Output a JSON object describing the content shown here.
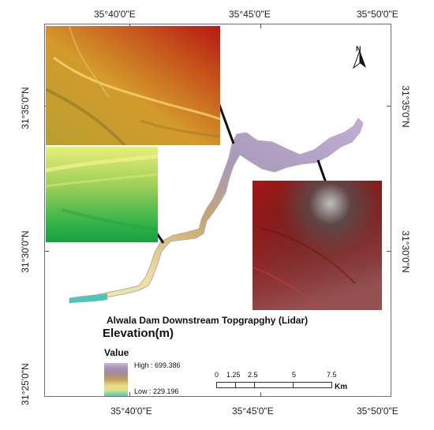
{
  "coordinates": {
    "top": [
      "35°40'0\"E",
      "35°45'0\"E",
      "35°50'0\"E"
    ],
    "bottom": [
      "35°40'0\"E",
      "35°45'0\"E",
      "35°50'0\"E"
    ],
    "left": [
      "31°35'0\"N",
      "31°30'0\"N",
      "31°25'0\"N"
    ],
    "right": [
      "31°35'0\"N",
      "31°30'0\"N"
    ]
  },
  "map_title": "Alwala Dam Downstream Topgrapghy (Lidar)",
  "legend": {
    "heading": "Elevation(m)",
    "value_label": "Value",
    "high": "High : 699.386",
    "low": "Low : 229.196"
  },
  "scale_bar": {
    "labels": [
      "0",
      "1.25",
      "2.5",
      "5",
      "7.5"
    ],
    "unit": "Km"
  },
  "north_arrow": {
    "letter": "N"
  },
  "colors": {
    "frame": "#6a6aa8",
    "river_high": "#b9a2c9",
    "river_mid": "#d8b46a",
    "river_low": "#3cc4b0"
  }
}
